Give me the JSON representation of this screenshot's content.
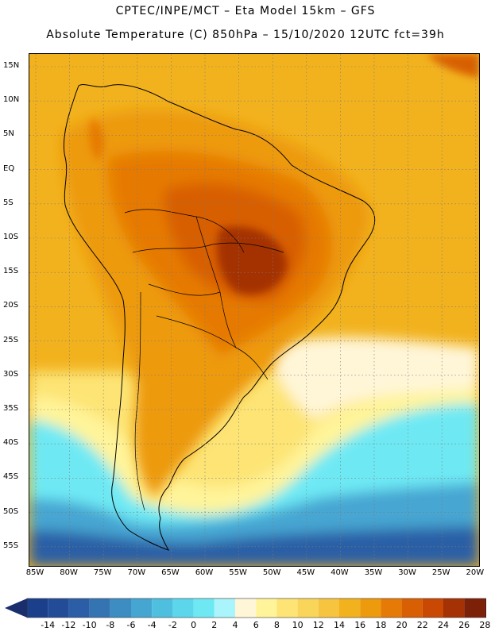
{
  "header": {
    "line1": "CPTEC/INPE/MCT –  Eta Model 15km – GFS",
    "line2": "Absolute Temperature (C) 850hPa – 15/10/2020 12UTC fct=39h"
  },
  "map": {
    "lat_ticks": [
      "15N",
      "10N",
      "5N",
      "EQ",
      "5S",
      "10S",
      "15S",
      "20S",
      "25S",
      "30S",
      "35S",
      "40S",
      "45S",
      "50S",
      "55S"
    ],
    "lon_ticks": [
      "85W",
      "80W",
      "75W",
      "70W",
      "65W",
      "60W",
      "55W",
      "50W",
      "45W",
      "40W",
      "35W",
      "30W",
      "25W",
      "20W"
    ]
  },
  "colorbar": {
    "labels": [
      "-14",
      "-12",
      "-10",
      "-8",
      "-6",
      "-4",
      "-2",
      "0",
      "2",
      "4",
      "6",
      "8",
      "10",
      "12",
      "14",
      "16",
      "18",
      "20",
      "22",
      "24",
      "26",
      "28"
    ],
    "colors": [
      "#1c3f8c",
      "#234c98",
      "#2b5ea6",
      "#3574b3",
      "#3d8cc2",
      "#46a6d2",
      "#4fbfdf",
      "#5cd6ea",
      "#6ee9f4",
      "#aaf5fb",
      "#fff6d8",
      "#fff49a",
      "#fde474",
      "#f9d55a",
      "#f6c43e",
      "#f2b21e",
      "#ed9a0c",
      "#e67a06",
      "#d85f04",
      "#c84804",
      "#a43204",
      "#7d2008",
      "#5e1010"
    ],
    "low_arrow_color": "#1a2e6e",
    "high_arrow_color": "#6a0a18"
  }
}
